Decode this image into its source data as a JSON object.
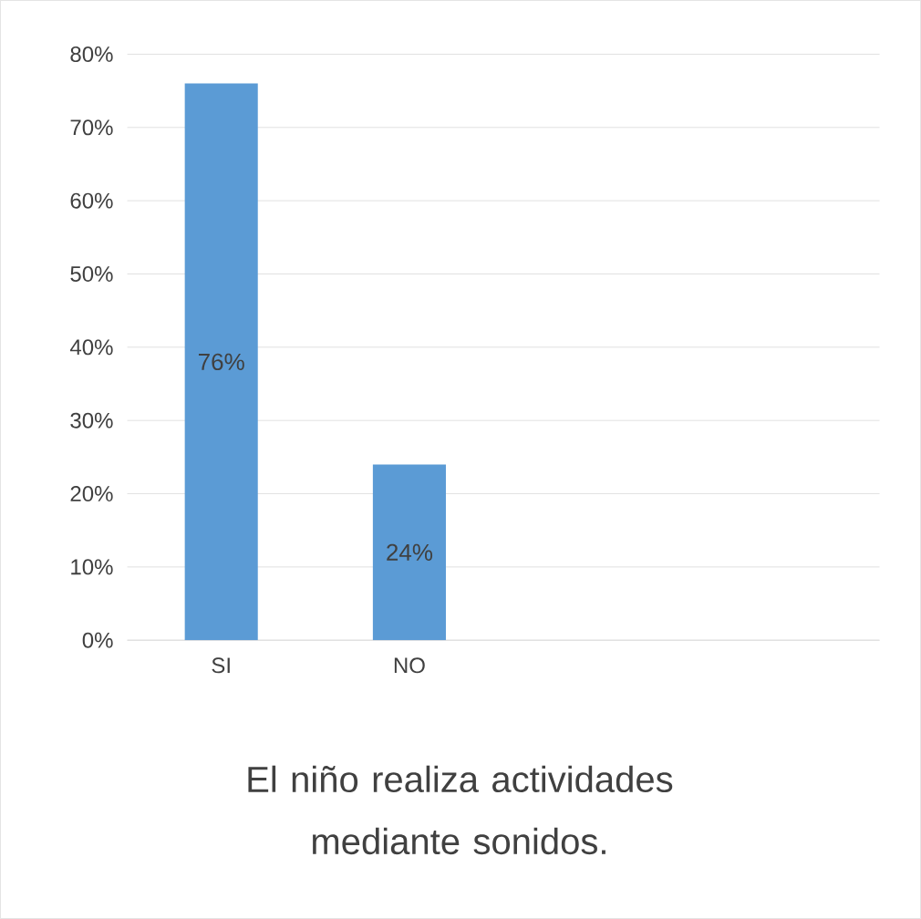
{
  "chart_data": {
    "type": "bar",
    "title": "El niño realiza actividades mediante sonidos.",
    "categories": [
      "SI",
      "NO",
      null,
      null
    ],
    "values": [
      76,
      24,
      null,
      null
    ],
    "value_labels": [
      "76%",
      "24%",
      null,
      null
    ],
    "color": "#5b9bd5",
    "ylim": [
      0,
      80
    ],
    "yticks": [
      {
        "value": 0,
        "label": "0%"
      },
      {
        "value": 10,
        "label": "10%"
      },
      {
        "value": 20,
        "label": "20%"
      },
      {
        "value": 30,
        "label": "30%"
      },
      {
        "value": 40,
        "label": "40%"
      },
      {
        "value": 50,
        "label": "50%"
      },
      {
        "value": 60,
        "label": "60%"
      },
      {
        "value": 70,
        "label": "70%"
      },
      {
        "value": 80,
        "label": "80%"
      }
    ],
    "grid": "y"
  }
}
